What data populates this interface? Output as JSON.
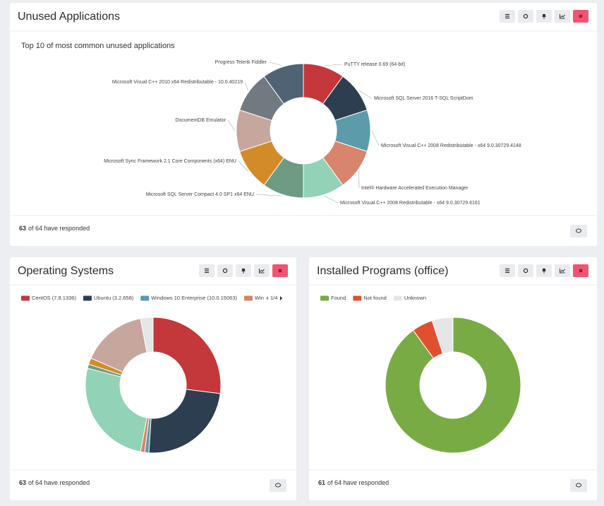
{
  "chart_data": [
    {
      "type": "pie",
      "title": "Unused Applications",
      "subtitle": "Top 10 of most common unused applications",
      "categories": [
        "PuTTY release 0.69 (64-bit)",
        "Microsoft SQL Server 2016 T-SQL ScriptDom",
        "Microsoft Visual C++ 2008 Redistributable - x64 9.0.30729.4148",
        "Intel® Hardware Accelerated Execution Manager",
        "Microsoft Visual C++ 2008 Redistributable - x64 9.0.30729.6161",
        "Microsoft SQL Server Compact 4.0 SP1 x64 ENU",
        "Microsoft Sync Framework 2.1 Core Components (x64) ENU",
        "DocumentDB Emulator",
        "Microsoft Visual C++ 2010  x64 Redistributable - 10.0.40219",
        "Progress Telerik Fiddler"
      ],
      "values": [
        10,
        10,
        10,
        10,
        10,
        10,
        10,
        10,
        10,
        10
      ],
      "colors": [
        "#c4373a",
        "#2c3e50",
        "#5c9ba9",
        "#d9846c",
        "#92d2b6",
        "#6e9c83",
        "#d38b27",
        "#c6a69d",
        "#727980",
        "#4f6375"
      ],
      "legend": false
    },
    {
      "type": "pie",
      "title": "Operating Systems",
      "categories": [
        "CentOS (7.8.1336)",
        "Ubuntu (3.2.658)",
        "Windows 10 Enterprise (10.0.15063)",
        "Win",
        null,
        null,
        null,
        null,
        null
      ],
      "values": [
        27,
        24,
        1,
        1,
        26,
        1,
        1.5,
        15.5,
        3
      ],
      "colors": [
        "#c4373a",
        "#2c3e50",
        "#5c9ba9",
        "#d9846c",
        "#92d2b6",
        "#6e9c83",
        "#d38b27",
        "#c6a69d",
        "#e6e6e6"
      ],
      "legend": true,
      "legend_page": "1/4"
    },
    {
      "type": "pie",
      "title": "Installed Programs (office)",
      "categories": [
        "Found",
        "Not found",
        "Unknown"
      ],
      "values": [
        90,
        5,
        5
      ],
      "colors": [
        "#79ab45",
        "#e0502f",
        "#e6e6e6"
      ],
      "legend": true
    }
  ],
  "footers": [
    {
      "responded": 63,
      "text": "of 64 have responded"
    },
    {
      "responded": 63,
      "text": "of 64 have responded"
    },
    {
      "responded": 61,
      "text": "of 64 have responded"
    }
  ]
}
